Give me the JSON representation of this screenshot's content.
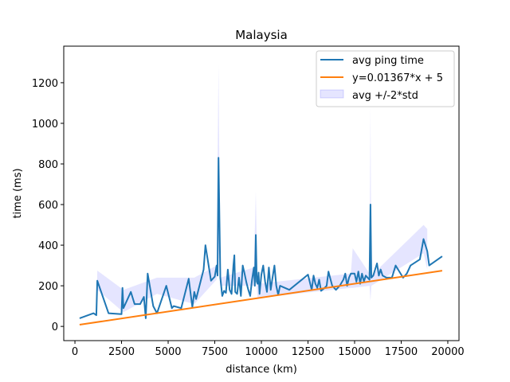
{
  "chart_data": {
    "type": "line",
    "title": "Malaysia",
    "xlabel": "distance (km)",
    "ylabel": "time (ms)",
    "xlim": [
      -600,
      20600
    ],
    "ylim": [
      -70,
      1380
    ],
    "xticks": [
      0,
      2500,
      5000,
      7500,
      10000,
      12500,
      15000,
      17500,
      20000
    ],
    "yticks": [
      0,
      200,
      400,
      600,
      800,
      1000,
      1200
    ],
    "legend_position": "upper right",
    "grid": false,
    "colors": {
      "line": "#1f77b4",
      "fit": "#ff7f0e",
      "band": "#0000ff"
    },
    "series": [
      {
        "name": "avg ping time",
        "kind": "line",
        "x": [
          250,
          1000,
          1150,
          1200,
          1800,
          2500,
          2550,
          2600,
          3000,
          3200,
          3500,
          3700,
          3800,
          3900,
          4200,
          4400,
          4900,
          5200,
          5300,
          5700,
          5800,
          6100,
          6300,
          6400,
          6500,
          6900,
          7000,
          7300,
          7500,
          7600,
          7650,
          7700,
          7800,
          7900,
          8000,
          8100,
          8200,
          8300,
          8400,
          8500,
          8550,
          8600,
          8700,
          8800,
          8900,
          9000,
          9100,
          9200,
          9300,
          9400,
          9500,
          9600,
          9650,
          9700,
          9750,
          9800,
          9850,
          9900,
          10000,
          10100,
          10200,
          10300,
          10400,
          10500,
          10600,
          10700,
          10800,
          10900,
          11000,
          11500,
          12500,
          12700,
          12800,
          12900,
          13000,
          13100,
          13200,
          13400,
          13500,
          13600,
          13800,
          14000,
          14200,
          14400,
          14500,
          14600,
          14700,
          14800,
          15000,
          15100,
          15200,
          15300,
          15400,
          15500,
          15600,
          15700,
          15800,
          15850,
          15900,
          16000,
          16200,
          16300,
          16400,
          16500,
          16700,
          17000,
          17200,
          17600,
          17800,
          18000,
          18500,
          18700,
          18900,
          19000,
          19700
        ],
        "y": [
          40,
          65,
          55,
          225,
          65,
          60,
          190,
          90,
          170,
          110,
          110,
          145,
          40,
          260,
          100,
          65,
          200,
          90,
          100,
          90,
          125,
          235,
          95,
          170,
          135,
          280,
          400,
          225,
          245,
          300,
          250,
          830,
          240,
          150,
          175,
          165,
          280,
          180,
          160,
          300,
          350,
          170,
          160,
          240,
          150,
          300,
          260,
          215,
          180,
          150,
          230,
          290,
          200,
          450,
          220,
          210,
          265,
          160,
          255,
          300,
          220,
          170,
          290,
          180,
          240,
          300,
          200,
          155,
          200,
          180,
          255,
          180,
          250,
          210,
          190,
          230,
          175,
          190,
          200,
          270,
          200,
          180,
          200,
          230,
          260,
          200,
          240,
          260,
          260,
          220,
          270,
          210,
          260,
          220,
          250,
          240,
          230,
          600,
          240,
          250,
          310,
          250,
          280,
          250,
          240,
          240,
          300,
          240,
          260,
          300,
          330,
          430,
          370,
          300,
          345
        ]
      },
      {
        "name": "y=0.01367*x + 5",
        "kind": "line",
        "x": [
          250,
          19700
        ],
        "y": [
          8.42,
          274.3
        ]
      },
      {
        "name": "avg +/-2*std",
        "kind": "band",
        "x": [
          1150,
          1200,
          2600,
          4400,
          6400,
          7600,
          7700,
          7800,
          9600,
          9700,
          9800,
          14800,
          14900,
          15800,
          15850,
          15900,
          18700,
          18900
        ],
        "upper": [
          60,
          275,
          180,
          240,
          240,
          300,
          1290,
          240,
          290,
          665,
          210,
          260,
          385,
          260,
          1085,
          250,
          500,
          480
        ],
        "lower": [
          50,
          180,
          70,
          160,
          110,
          230,
          380,
          200,
          200,
          240,
          140,
          190,
          190,
          200,
          125,
          200,
          360,
          280
        ]
      }
    ]
  }
}
